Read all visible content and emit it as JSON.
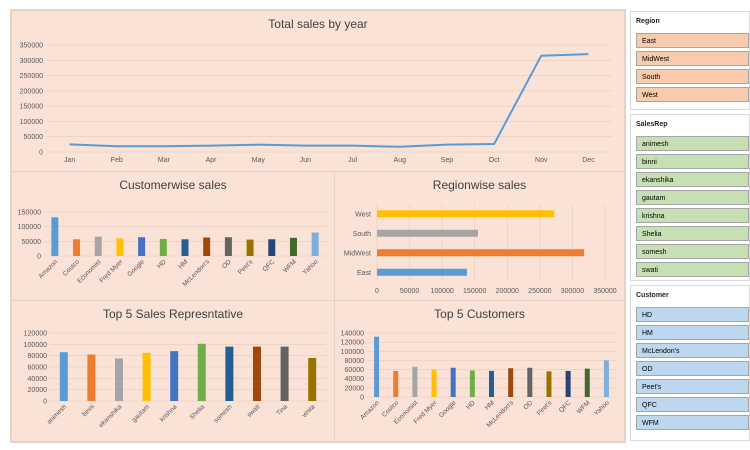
{
  "charts": {
    "total": {
      "title": "Total sales by year",
      "categories": [
        "Jan",
        "Feb",
        "Mar",
        "Apr",
        "May",
        "Jun",
        "Jul",
        "Aug",
        "Sep",
        "Oct",
        "Nov",
        "Dec"
      ],
      "values": [
        25000,
        19000,
        19000,
        21000,
        24000,
        21000,
        21000,
        17000,
        24000,
        26000,
        315000,
        320000
      ],
      "yticks": [
        "0",
        "50000",
        "100000",
        "150000",
        "200000",
        "250000",
        "300000",
        "350000"
      ],
      "color": "#5b9bd5"
    },
    "customer": {
      "title": "Customerwise sales",
      "categories": [
        "Amazon",
        "Costco",
        "Economist",
        "Fred Myer",
        "Google",
        "HD",
        "HM",
        "McLendon's",
        "OD",
        "Peet's",
        "QFC",
        "WFM",
        "Yahoo"
      ],
      "values": [
        132000,
        57000,
        66000,
        60000,
        64000,
        58000,
        57000,
        63000,
        64000,
        56000,
        57000,
        62000,
        80000
      ],
      "yticks": [
        "0",
        "50000",
        "100000",
        "150000"
      ],
      "colors": [
        "#5b9bd5",
        "#ed7d31",
        "#a5a5a5",
        "#ffc000",
        "#4472c4",
        "#70ad47",
        "#255e91",
        "#9e480e",
        "#636363",
        "#997300",
        "#264478",
        "#43682b",
        "#7cafdd"
      ]
    },
    "region": {
      "title": "Regionwise sales",
      "categories": [
        "West",
        "South",
        "MidWest",
        "East"
      ],
      "values": [
        272000,
        155000,
        318000,
        138000
      ],
      "xticks": [
        "0",
        "50000",
        "100000",
        "150000",
        "200000",
        "250000",
        "300000",
        "350000"
      ],
      "colors": [
        "#ffc000",
        "#a5a5a5",
        "#ed7d31",
        "#5b9bd5"
      ]
    },
    "reps": {
      "title": "Top 5 Sales Represntative",
      "categories": [
        "animesh",
        "binni",
        "ekanshika",
        "gautam",
        "krishna",
        "Shelia",
        "somesh",
        "swati",
        "Tina",
        "vinita"
      ],
      "values": [
        86000,
        82000,
        75000,
        85000,
        88000,
        101000,
        96000,
        96000,
        96000,
        76000
      ],
      "yticks": [
        "0",
        "20000",
        "40000",
        "60000",
        "80000",
        "100000",
        "120000"
      ],
      "colors": [
        "#5b9bd5",
        "#ed7d31",
        "#a5a5a5",
        "#ffc000",
        "#4472c4",
        "#70ad47",
        "#255e91",
        "#9e480e",
        "#636363",
        "#997300"
      ]
    },
    "topcust": {
      "title": "Top 5 Customers",
      "categories": [
        "Amazon",
        "Costco",
        "Economist",
        "Fred Myer",
        "Google",
        "HD",
        "HM",
        "McLendon's",
        "OD",
        "Peet's",
        "QFC",
        "WFM",
        "Yahoo"
      ],
      "values": [
        132000,
        57000,
        66000,
        60000,
        64000,
        58000,
        57000,
        63000,
        64000,
        56000,
        57000,
        62000,
        80000
      ],
      "yticks": [
        "0",
        "20000",
        "40000",
        "60000",
        "80000",
        "100000",
        "120000",
        "140000"
      ],
      "colors": [
        "#5b9bd5",
        "#ed7d31",
        "#a5a5a5",
        "#ffc000",
        "#4472c4",
        "#70ad47",
        "#255e91",
        "#9e480e",
        "#636363",
        "#997300",
        "#264478",
        "#43682b",
        "#7cafdd"
      ]
    }
  },
  "chart_data": [
    {
      "type": "line",
      "title": "Total sales by year",
      "x": [
        "Jan",
        "Feb",
        "Mar",
        "Apr",
        "May",
        "Jun",
        "Jul",
        "Aug",
        "Sep",
        "Oct",
        "Nov",
        "Dec"
      ],
      "values": [
        25000,
        19000,
        19000,
        21000,
        24000,
        21000,
        21000,
        17000,
        24000,
        26000,
        315000,
        320000
      ],
      "ylim": [
        0,
        350000
      ]
    },
    {
      "type": "bar",
      "title": "Customerwise sales",
      "categories": [
        "Amazon",
        "Costco",
        "Economist",
        "Fred Myer",
        "Google",
        "HD",
        "HM",
        "McLendon's",
        "OD",
        "Peet's",
        "QFC",
        "WFM",
        "Yahoo"
      ],
      "values": [
        132000,
        57000,
        66000,
        60000,
        64000,
        58000,
        57000,
        63000,
        64000,
        56000,
        57000,
        62000,
        80000
      ],
      "ylim": [
        0,
        150000
      ]
    },
    {
      "type": "bar",
      "orientation": "horizontal",
      "title": "Regionwise sales",
      "categories": [
        "West",
        "South",
        "MidWest",
        "East"
      ],
      "values": [
        272000,
        155000,
        318000,
        138000
      ],
      "xlim": [
        0,
        350000
      ]
    },
    {
      "type": "bar",
      "title": "Top 5 Sales Represntative",
      "categories": [
        "animesh",
        "binni",
        "ekanshika",
        "gautam",
        "krishna",
        "Shelia",
        "somesh",
        "swati",
        "Tina",
        "vinita"
      ],
      "values": [
        86000,
        82000,
        75000,
        85000,
        88000,
        101000,
        96000,
        96000,
        96000,
        76000
      ],
      "ylim": [
        0,
        120000
      ]
    },
    {
      "type": "bar",
      "title": "Top 5 Customers",
      "categories": [
        "Amazon",
        "Costco",
        "Economist",
        "Fred Myer",
        "Google",
        "HD",
        "HM",
        "McLendon's",
        "OD",
        "Peet's",
        "QFC",
        "WFM",
        "Yahoo"
      ],
      "values": [
        132000,
        57000,
        66000,
        60000,
        64000,
        58000,
        57000,
        63000,
        64000,
        56000,
        57000,
        62000,
        80000
      ],
      "ylim": [
        0,
        140000
      ]
    }
  ],
  "slicers": {
    "region": {
      "title": "Region",
      "items": [
        "East",
        "MidWest",
        "South",
        "West"
      ]
    },
    "salesrep": {
      "title": "SalesRep",
      "items": [
        "animesh",
        "binni",
        "ekanshika",
        "gautam",
        "krishna",
        "Shelia",
        "somesh",
        "swati"
      ]
    },
    "customer": {
      "title": "Customer",
      "items": [
        "HD",
        "HM",
        "McLendon's",
        "OD",
        "Peet's",
        "QFC",
        "WFM"
      ]
    }
  }
}
